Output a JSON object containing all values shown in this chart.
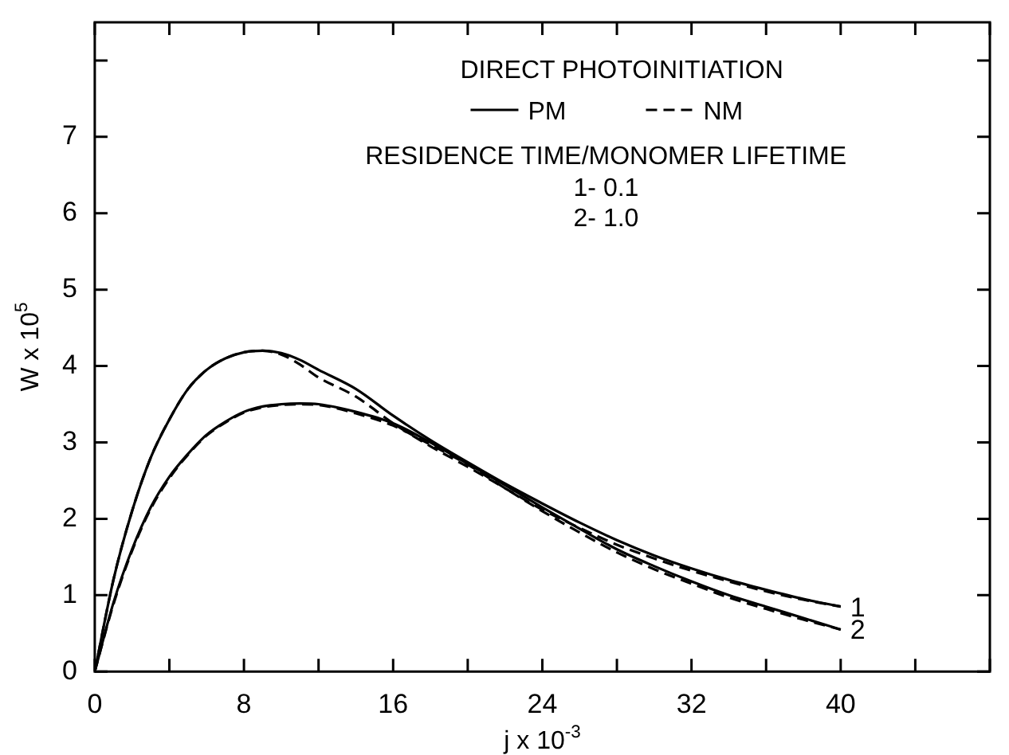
{
  "chart_data": {
    "type": "line",
    "title": "DIRECT PHOTOINITIATION",
    "subtitle": "RESIDENCE TIME/MONOMER LIFETIME",
    "xlabel": "j x 10$^{-3}$",
    "ylabel": "W x 10$^{5}$",
    "xlim": [
      0,
      48
    ],
    "ylim": [
      0,
      8.5
    ],
    "xticks": [
      0,
      {
        "value": 4,
        "label": null
      },
      8,
      {
        "value": 12,
        "label": null
      },
      16,
      {
        "value": 20,
        "label": null
      },
      24,
      {
        "value": 28,
        "label": null
      },
      32,
      {
        "value": 36,
        "label": null
      },
      40,
      {
        "value": 44,
        "label": null
      },
      {
        "value": 48,
        "label": null
      }
    ],
    "yticks": [
      0,
      1,
      2,
      3,
      4,
      5,
      6,
      7,
      {
        "value": 8,
        "label": null
      }
    ],
    "grid": false,
    "legend": "top",
    "marker": "none",
    "x": [
      0,
      1,
      2,
      3,
      4,
      5,
      6,
      7,
      8,
      9,
      10,
      11,
      12,
      14,
      16,
      18,
      20,
      22,
      24,
      26,
      28,
      30,
      32,
      34,
      36,
      38,
      40
    ],
    "series": [
      {
        "name": "PM",
        "color": "#000000",
        "line_style": "solid",
        "values": [
          0,
          1.2,
          2.1,
          2.8,
          3.3,
          3.7,
          3.95,
          4.1,
          4.18,
          4.2,
          4.17,
          4.08,
          3.95,
          3.7,
          3.35,
          3.03,
          2.74,
          2.46,
          2.2,
          1.95,
          1.72,
          1.52,
          1.35,
          1.2,
          1.07,
          0.95,
          0.85
        ]
      },
      {
        "name": "NM",
        "color": "#000000",
        "line_style": "dashed",
        "values": [
          0,
          1.2,
          2.1,
          2.8,
          3.3,
          3.7,
          3.95,
          4.1,
          4.18,
          4.2,
          4.15,
          4.02,
          3.85,
          3.6,
          3.25,
          2.95,
          2.68,
          2.4,
          2.12,
          1.88,
          1.66,
          1.48,
          1.32,
          1.18,
          1.05,
          0.94,
          0.85
        ]
      },
      {
        "color": "#000000",
        "line_style": "solid",
        "values": [
          0,
          0.9,
          1.6,
          2.15,
          2.55,
          2.85,
          3.1,
          3.27,
          3.4,
          3.47,
          3.5,
          3.51,
          3.5,
          3.4,
          3.25,
          3.0,
          2.72,
          2.44,
          2.15,
          1.87,
          1.6,
          1.38,
          1.18,
          1.0,
          0.85,
          0.7,
          0.55
        ]
      },
      {
        "color": "#000000",
        "line_style": "dashed",
        "values": [
          0,
          0.88,
          1.58,
          2.13,
          2.53,
          2.84,
          3.09,
          3.26,
          3.39,
          3.46,
          3.49,
          3.5,
          3.49,
          3.38,
          3.22,
          2.97,
          2.71,
          2.4,
          2.1,
          1.82,
          1.56,
          1.34,
          1.15,
          0.97,
          0.82,
          0.68,
          0.55
        ]
      }
    ],
    "annotations": [
      "1- 0.1",
      "2- 1.0",
      {
        "text": "1",
        "x": 40,
        "y": 0.85
      },
      {
        "text": "2",
        "x": 40,
        "y": 0.55
      }
    ]
  }
}
